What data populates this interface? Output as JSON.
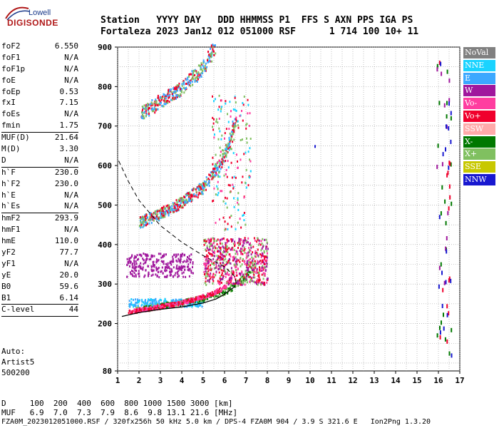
{
  "logo": {
    "line1": "Lowell",
    "line2": "DIGISONDE"
  },
  "header": {
    "line1": "Station   YYYY DAY   DDD HHMMSS P1  FFS S AXN PPS IGA PS",
    "line2": "Fortaleza 2023 Jan12 012 051000 RSF      1 714 100 10+ 11"
  },
  "params": [
    {
      "name": "foF2",
      "value": "6.550"
    },
    {
      "name": "foF1",
      "value": "N/A"
    },
    {
      "name": "foF1p",
      "value": "N/A"
    },
    {
      "name": "foE",
      "value": "N/A"
    },
    {
      "name": "foEp",
      "value": "0.53"
    },
    {
      "name": "fxI",
      "value": "7.15"
    },
    {
      "name": "foEs",
      "value": "N/A"
    },
    {
      "name": "fmin",
      "value": "1.75"
    },
    {
      "sep": true
    },
    {
      "name": "MUF(D)",
      "value": "21.64"
    },
    {
      "name": "M(D)",
      "value": "3.30"
    },
    {
      "name": "D",
      "value": "N/A"
    },
    {
      "sep": true
    },
    {
      "name": "h`F",
      "value": "230.0"
    },
    {
      "name": "h`F2",
      "value": "230.0"
    },
    {
      "name": "h`E",
      "value": "N/A"
    },
    {
      "name": "h`Es",
      "value": "N/A"
    },
    {
      "sep": true
    },
    {
      "name": "hmF2",
      "value": "293.9"
    },
    {
      "name": "hmF1",
      "value": "N/A"
    },
    {
      "name": "hmE",
      "value": "110.0"
    },
    {
      "name": "yF2",
      "value": "77.7"
    },
    {
      "name": "yF1",
      "value": "N/A"
    },
    {
      "name": "yE",
      "value": "20.0"
    },
    {
      "name": "B0",
      "value": "59.6"
    },
    {
      "name": "B1",
      "value": "6.14"
    },
    {
      "sep": true
    },
    {
      "name": "C-level",
      "value": "44"
    },
    {
      "sep": true
    }
  ],
  "autoscale": {
    "line1": "Auto:",
    "line2": "Artist5",
    "line3": "500200"
  },
  "legend": [
    {
      "label": "NoVal",
      "color": "#808080"
    },
    {
      "label": "NNE",
      "color": "#1ad3ff"
    },
    {
      "label": "E",
      "color": "#3ca8ff"
    },
    {
      "label": "W",
      "color": "#a0179d"
    },
    {
      "label": "Vo-",
      "color": "#ff3da0"
    },
    {
      "label": "Vo+",
      "color": "#f0002c"
    },
    {
      "label": "SSW",
      "color": "#ffaaaa"
    },
    {
      "label": "X-",
      "color": "#007800"
    },
    {
      "label": "X+",
      "color": "#80c060"
    },
    {
      "label": "SSE",
      "color": "#c8c800"
    },
    {
      "label": "NNW",
      "color": "#1818d0"
    }
  ],
  "footer": {
    "line1": "D     100  200  400  600  800 1000 1500 3000 [km]",
    "line2": "MUF   6.9  7.0  7.3  7.9  8.6  9.8 13.1 21.6 [MHz]",
    "line3": "FZA0M_2023012051000.RSF / 320fx256h 50 kHz 5.0 km / DPS-4 FZA0M 904 / 3.9 S 321.6 E   Ion2Png 1.3.20"
  },
  "chart_data": {
    "type": "scatter",
    "xlim": [
      1,
      17
    ],
    "ylim": [
      80,
      900
    ],
    "xticks": [
      1,
      2,
      3,
      4,
      5,
      6,
      7,
      8,
      9,
      10,
      11,
      12,
      13,
      14,
      15,
      16,
      17
    ],
    "yticks": [
      80,
      200,
      300,
      400,
      500,
      600,
      700,
      800,
      900
    ],
    "grid": true,
    "profile_curve": [
      [
        1.2,
        218
      ],
      [
        2.0,
        228
      ],
      [
        3.0,
        236
      ],
      [
        4.0,
        242
      ],
      [
        5.0,
        252
      ],
      [
        5.6,
        262
      ],
      [
        6.0,
        274
      ],
      [
        6.3,
        287
      ],
      [
        6.5,
        294
      ]
    ],
    "muf_dashed_curve": [
      [
        1.05,
        612
      ],
      [
        1.5,
        560
      ],
      [
        2.0,
        512
      ],
      [
        3.0,
        448
      ],
      [
        4.0,
        406
      ],
      [
        5.0,
        372
      ],
      [
        6.0,
        344
      ],
      [
        6.5,
        318
      ],
      [
        6.55,
        294
      ]
    ],
    "trace_o_first_hop": {
      "color_set": [
        "#f0002c",
        "#ff3da0"
      ],
      "points": [
        [
          1.5,
          232
        ],
        [
          2.0,
          236
        ],
        [
          3.0,
          245
        ],
        [
          4.0,
          255
        ],
        [
          5.0,
          270
        ],
        [
          5.5,
          280
        ],
        [
          6.0,
          295
        ],
        [
          6.3,
          320
        ],
        [
          6.5,
          350
        ]
      ]
    },
    "trace_x_first_hop": {
      "color_set": [
        "#80c060",
        "#007800"
      ],
      "points": [
        [
          1.8,
          236
        ],
        [
          3.0,
          246
        ],
        [
          4.0,
          256
        ],
        [
          5.0,
          266
        ],
        [
          6.0,
          282
        ],
        [
          7.0,
          320
        ],
        [
          7.5,
          360
        ]
      ]
    },
    "trace_second_hop": {
      "color_set": [
        "#f0002c",
        "#3ca8ff",
        "#80c060"
      ],
      "points": [
        [
          2.0,
          458
        ],
        [
          3.0,
          480
        ],
        [
          4.0,
          510
        ],
        [
          5.0,
          548
        ],
        [
          5.7,
          600
        ],
        [
          6.2,
          660
        ],
        [
          6.5,
          720
        ]
      ]
    },
    "trace_third_hop": {
      "color_set": [
        "#f0002c",
        "#3ca8ff",
        "#80c060"
      ],
      "points": [
        [
          2.1,
          735
        ],
        [
          3.0,
          765
        ],
        [
          4.0,
          800
        ],
        [
          5.0,
          850
        ],
        [
          5.5,
          900
        ]
      ]
    },
    "oblique_patch_w": {
      "color": "#a0179d",
      "x": [
        1.4,
        4.5
      ],
      "y": [
        320,
        380
      ]
    },
    "spread_f_region": {
      "colors": [
        "#f0002c",
        "#ff3da0",
        "#80c060",
        "#a0179d"
      ],
      "x": [
        5.0,
        8.0
      ],
      "y": [
        300,
        420
      ]
    },
    "low_echo_band": {
      "color": "#3ca8ff",
      "x": [
        1.5,
        5.0
      ],
      "y": [
        245,
        265
      ]
    },
    "high_freq_column": {
      "colors": [
        "#007800",
        "#1818d0",
        "#f0002c",
        "#a0179d"
      ],
      "x": [
        15.9,
        16.6
      ],
      "y": [
        120,
        900
      ]
    }
  }
}
